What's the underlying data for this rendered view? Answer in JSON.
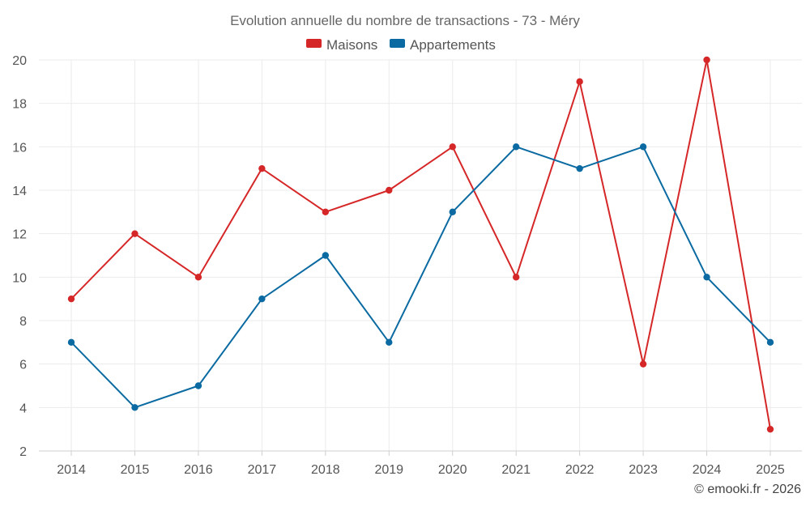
{
  "chart_data": {
    "type": "line",
    "title": "Evolution annuelle du nombre de transactions - 73 - Méry",
    "categories": [
      "2014",
      "2015",
      "2016",
      "2017",
      "2018",
      "2019",
      "2020",
      "2021",
      "2022",
      "2023",
      "2024",
      "2025"
    ],
    "series": [
      {
        "name": "Maisons",
        "color": "#d62728",
        "values": [
          9,
          12,
          10,
          15,
          13,
          14,
          16,
          10,
          19,
          6,
          20,
          3
        ]
      },
      {
        "name": "Appartements",
        "color": "#0a6aa1",
        "values": [
          7,
          4,
          5,
          9,
          11,
          7,
          13,
          16,
          15,
          16,
          10,
          7
        ]
      }
    ],
    "ylim": [
      2,
      20
    ],
    "yticks": [
      "2",
      "4",
      "6",
      "8",
      "10",
      "12",
      "14",
      "16",
      "18",
      "20"
    ],
    "xlabel": "",
    "ylabel": "",
    "grid": true,
    "legend_position": "top-center"
  },
  "credit": "© emooki.fr - 2026"
}
